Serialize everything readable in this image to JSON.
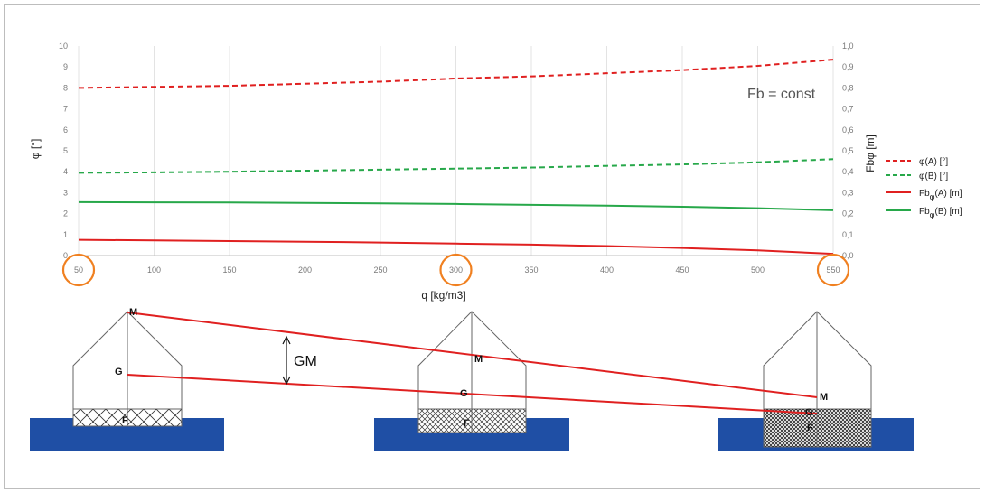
{
  "chart_data": {
    "type": "line",
    "xlabel": "q [kg/m3]",
    "ylabel_left": "φ [°]",
    "ylabel_right": "Fbφ [m]",
    "x_ticks": [
      "50",
      "100",
      "150",
      "200",
      "250",
      "300",
      "350",
      "400",
      "450",
      "500",
      "550"
    ],
    "y_left_ticks": [
      "0",
      "1",
      "2",
      "3",
      "4",
      "5",
      "6",
      "7",
      "8",
      "9",
      "10"
    ],
    "y_right_ticks": [
      "0,0",
      "0,1",
      "0,2",
      "0,3",
      "0,4",
      "0,5",
      "0,6",
      "0,7",
      "0,8",
      "0,9",
      "1,0"
    ],
    "xlim": [
      50,
      550
    ],
    "ylim_left": [
      0,
      10
    ],
    "ylim_right": [
      0,
      1.0
    ],
    "grid": "vertical",
    "legend_position": "right",
    "x": [
      50,
      100,
      150,
      200,
      250,
      300,
      350,
      400,
      450,
      500,
      550
    ],
    "series": [
      {
        "name": "φ(A) [°]",
        "axis": "left",
        "style": "dashed",
        "color": "#e02020",
        "values": [
          8.0,
          8.05,
          8.1,
          8.2,
          8.3,
          8.45,
          8.55,
          8.7,
          8.85,
          9.05,
          9.35
        ]
      },
      {
        "name": "φ(B) [°]",
        "axis": "left",
        "style": "dashed",
        "color": "#27a84a",
        "values": [
          3.95,
          3.97,
          4.0,
          4.05,
          4.1,
          4.15,
          4.2,
          4.28,
          4.35,
          4.45,
          4.6
        ]
      },
      {
        "name": "Fbφ(A) [m]",
        "axis": "right",
        "style": "solid",
        "color": "#e02020",
        "values": [
          0.075,
          0.072,
          0.069,
          0.066,
          0.062,
          0.057,
          0.052,
          0.045,
          0.036,
          0.025,
          0.008
        ]
      },
      {
        "name": "Fbφ(B) [m]",
        "axis": "right",
        "style": "solid",
        "color": "#27a84a",
        "values": [
          0.255,
          0.254,
          0.253,
          0.251,
          0.249,
          0.246,
          0.242,
          0.238,
          0.233,
          0.226,
          0.216
        ]
      }
    ],
    "annotation": "Fb = const",
    "highlighted_x": [
      "50",
      "300",
      "550"
    ]
  },
  "legend": [
    {
      "base": "φ(A) [°]",
      "sub": "",
      "tail": "",
      "color": "#e02020",
      "style": "dashed"
    },
    {
      "base": "φ(B) [°]",
      "sub": "",
      "tail": "",
      "color": "#27a84a",
      "style": "dashed"
    },
    {
      "base": "Fb",
      "sub": "φ",
      "tail": "(A) [m]",
      "color": "#e02020",
      "style": "solid"
    },
    {
      "base": "Fb",
      "sub": "φ",
      "tail": "(B) [m]",
      "color": "#27a84a",
      "style": "solid"
    }
  ],
  "diagram": {
    "gm_label": "GM",
    "point_labels": {
      "M": "M",
      "G": "G",
      "F": "F"
    },
    "colors": {
      "water": "#1f4fa5",
      "line": "#e02020",
      "outline": "#666666",
      "highlight": "#f08020"
    }
  }
}
